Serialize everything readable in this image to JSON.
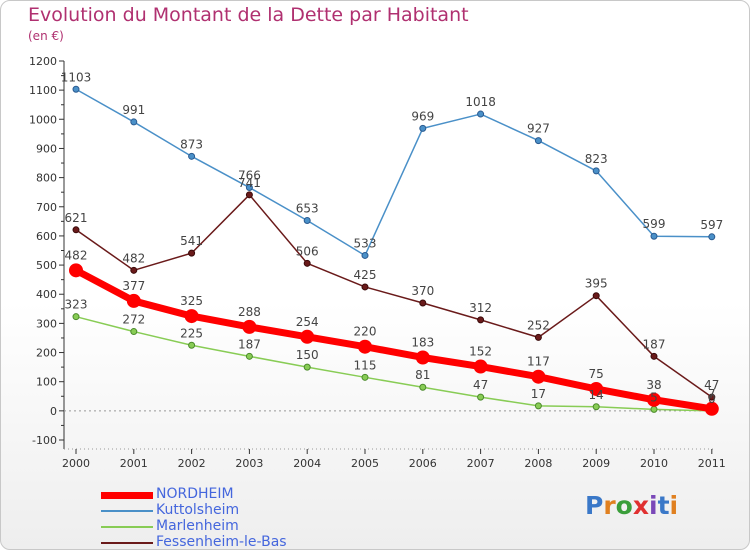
{
  "header": {
    "title": "Evolution du Montant de la Dette par Habitant",
    "unit": "(en €)"
  },
  "logo": {
    "text": "Proxiti",
    "colors": [
      "#3a78c8",
      "#e08020",
      "#3a9e3a",
      "#e03030",
      "#7a48b8",
      "#3a78c8",
      "#e08020"
    ]
  },
  "chart_data": {
    "type": "line",
    "title": "Evolution du Montant de la Dette par Habitant",
    "ylabel": "(en €)",
    "xlabel": "",
    "ylim": [
      -100,
      1200
    ],
    "yticks": [
      -100,
      0,
      100,
      200,
      300,
      400,
      500,
      600,
      700,
      800,
      900,
      1000,
      1100,
      1200
    ],
    "x": [
      "2000",
      "2001",
      "2002",
      "2003",
      "2004",
      "2005",
      "2006",
      "2007",
      "2008",
      "2009",
      "2010",
      "2011"
    ],
    "grid": false,
    "legend_position": "bottom-left",
    "series": [
      {
        "name": "NORDHEIM",
        "color": "#ff0000",
        "values": [
          482,
          377,
          325,
          288,
          254,
          220,
          183,
          152,
          117,
          75,
          38,
          7
        ],
        "labels": [
          "482",
          "377",
          "325",
          "288",
          "254",
          "220",
          "183",
          "152",
          "117",
          "75",
          "38",
          "7"
        ]
      },
      {
        "name": "Kuttolsheim",
        "color": "#4a90c8",
        "values": [
          1103,
          991,
          873,
          766,
          653,
          533,
          969,
          1018,
          927,
          823,
          599,
          597
        ],
        "labels": [
          "1103",
          "991",
          "873",
          "766",
          "653",
          "533",
          "969",
          "1018",
          "927",
          "823",
          "599",
          "597"
        ]
      },
      {
        "name": "Marlenheim",
        "color": "#88cc55",
        "values": [
          323,
          272,
          225,
          187,
          150,
          115,
          81,
          47,
          17,
          14,
          5,
          0
        ],
        "labels": [
          "323",
          "272",
          "225",
          "187",
          "150",
          "115",
          "81",
          "47",
          "17",
          "14",
          "5",
          "0"
        ]
      },
      {
        "name": "Fessenheim-le-Bas",
        "color": "#6a1a1a",
        "values": [
          621,
          482,
          541,
          741,
          506,
          425,
          370,
          312,
          252,
          395,
          187,
          47
        ],
        "labels": [
          "621",
          "482",
          "541",
          "741",
          "506",
          "425",
          "370",
          "312",
          "252",
          "395",
          "187",
          "47"
        ]
      }
    ]
  }
}
